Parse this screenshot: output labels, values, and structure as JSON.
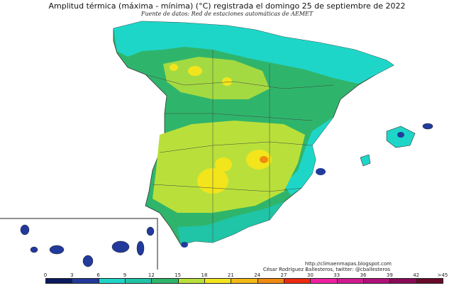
{
  "header": {
    "title": "Amplitud térmica (máxima - mínima) (°C) registrada el domingo 25 de septiembre de 2022",
    "subtitle": "Fuente de datos: Red de estaciones automáticas de AEMET"
  },
  "credits": {
    "url": "http://climaenmapas.blogspot.com",
    "author": "César Rodríguez Ballesteros, twitter: @cballesteros"
  },
  "legend": {
    "ticks": [
      "0",
      "3",
      "6",
      "9",
      "12",
      "15",
      "18",
      "21",
      "24",
      "27",
      "30",
      "33",
      "36",
      "39",
      "42",
      ">45"
    ],
    "colors": [
      "#0b1a5e",
      "#223a9c",
      "#1ed6c8",
      "#20c4a6",
      "#2fb56b",
      "#b9e03a",
      "#f2e51c",
      "#f2b814",
      "#f08a10",
      "#ee2a10",
      "#f020a0",
      "#d01a90",
      "#b0107a",
      "#8a0a58",
      "#6a0a2a"
    ]
  },
  "map_regions": {
    "peninsula": "peninsula",
    "balearics": "balearic-islands",
    "canaries": "canary-islands"
  }
}
